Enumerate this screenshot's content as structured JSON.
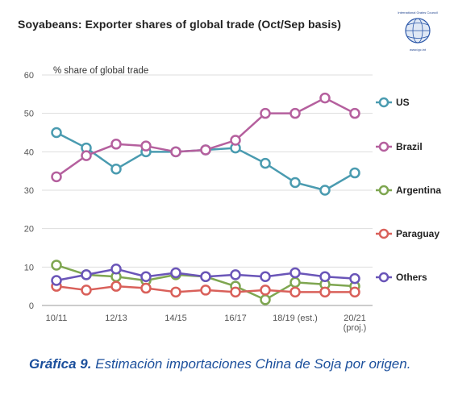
{
  "header": {
    "title": "Soyabeans: Exporter shares of global trade (Oct/Sep basis)",
    "logo_text_top": "International Grains Council",
    "logo_text_bottom": "www.igc.int"
  },
  "caption": {
    "label": "Gráfica 9.",
    "text": " Estimación importaciones China de Soja por origen."
  },
  "chart_data": {
    "type": "line",
    "ylabel": "% share of global trade",
    "ylim": [
      0,
      60
    ],
    "yticks": [
      0,
      10,
      20,
      30,
      40,
      50,
      60
    ],
    "x": [
      "10/11",
      "11/12",
      "12/13",
      "13/14",
      "14/15",
      "15/16",
      "16/17",
      "17/18",
      "18/19 (est.)",
      "19/20",
      "20/21 (proj.)"
    ],
    "xtick_labels": [
      {
        "index": 0,
        "lines": [
          "10/11"
        ]
      },
      {
        "index": 2,
        "lines": [
          "12/13"
        ]
      },
      {
        "index": 4,
        "lines": [
          "14/15"
        ]
      },
      {
        "index": 6,
        "lines": [
          "16/17"
        ]
      },
      {
        "index": 8,
        "lines": [
          "18/19 (est.)"
        ]
      },
      {
        "index": 10,
        "lines": [
          "20/21",
          "(proj.)"
        ]
      }
    ],
    "grid": true,
    "legend_position": "right",
    "series": [
      {
        "name": "US",
        "color": "#4a9bb0",
        "values": [
          45,
          41,
          35.5,
          40,
          40,
          40.5,
          41,
          37,
          32,
          30,
          34.5
        ]
      },
      {
        "name": "Brazil",
        "color": "#b5609e",
        "values": [
          33.5,
          39,
          42,
          41.5,
          40,
          40.5,
          43,
          50,
          50,
          54,
          50
        ]
      },
      {
        "name": "Argentina",
        "color": "#7ea650",
        "values": [
          10.5,
          8,
          7.5,
          6.5,
          8,
          7.5,
          5,
          1.5,
          6,
          5.5,
          5
        ]
      },
      {
        "name": "Paraguay",
        "color": "#d9605a",
        "values": [
          5,
          4,
          5,
          4.5,
          3.5,
          4,
          3.5,
          4,
          3.5,
          3.5,
          3.5
        ]
      },
      {
        "name": "Others",
        "color": "#6a55b8",
        "values": [
          6.5,
          8,
          9.5,
          7.5,
          8.5,
          7.5,
          8,
          7.5,
          8.5,
          7.5,
          7
        ]
      }
    ]
  }
}
